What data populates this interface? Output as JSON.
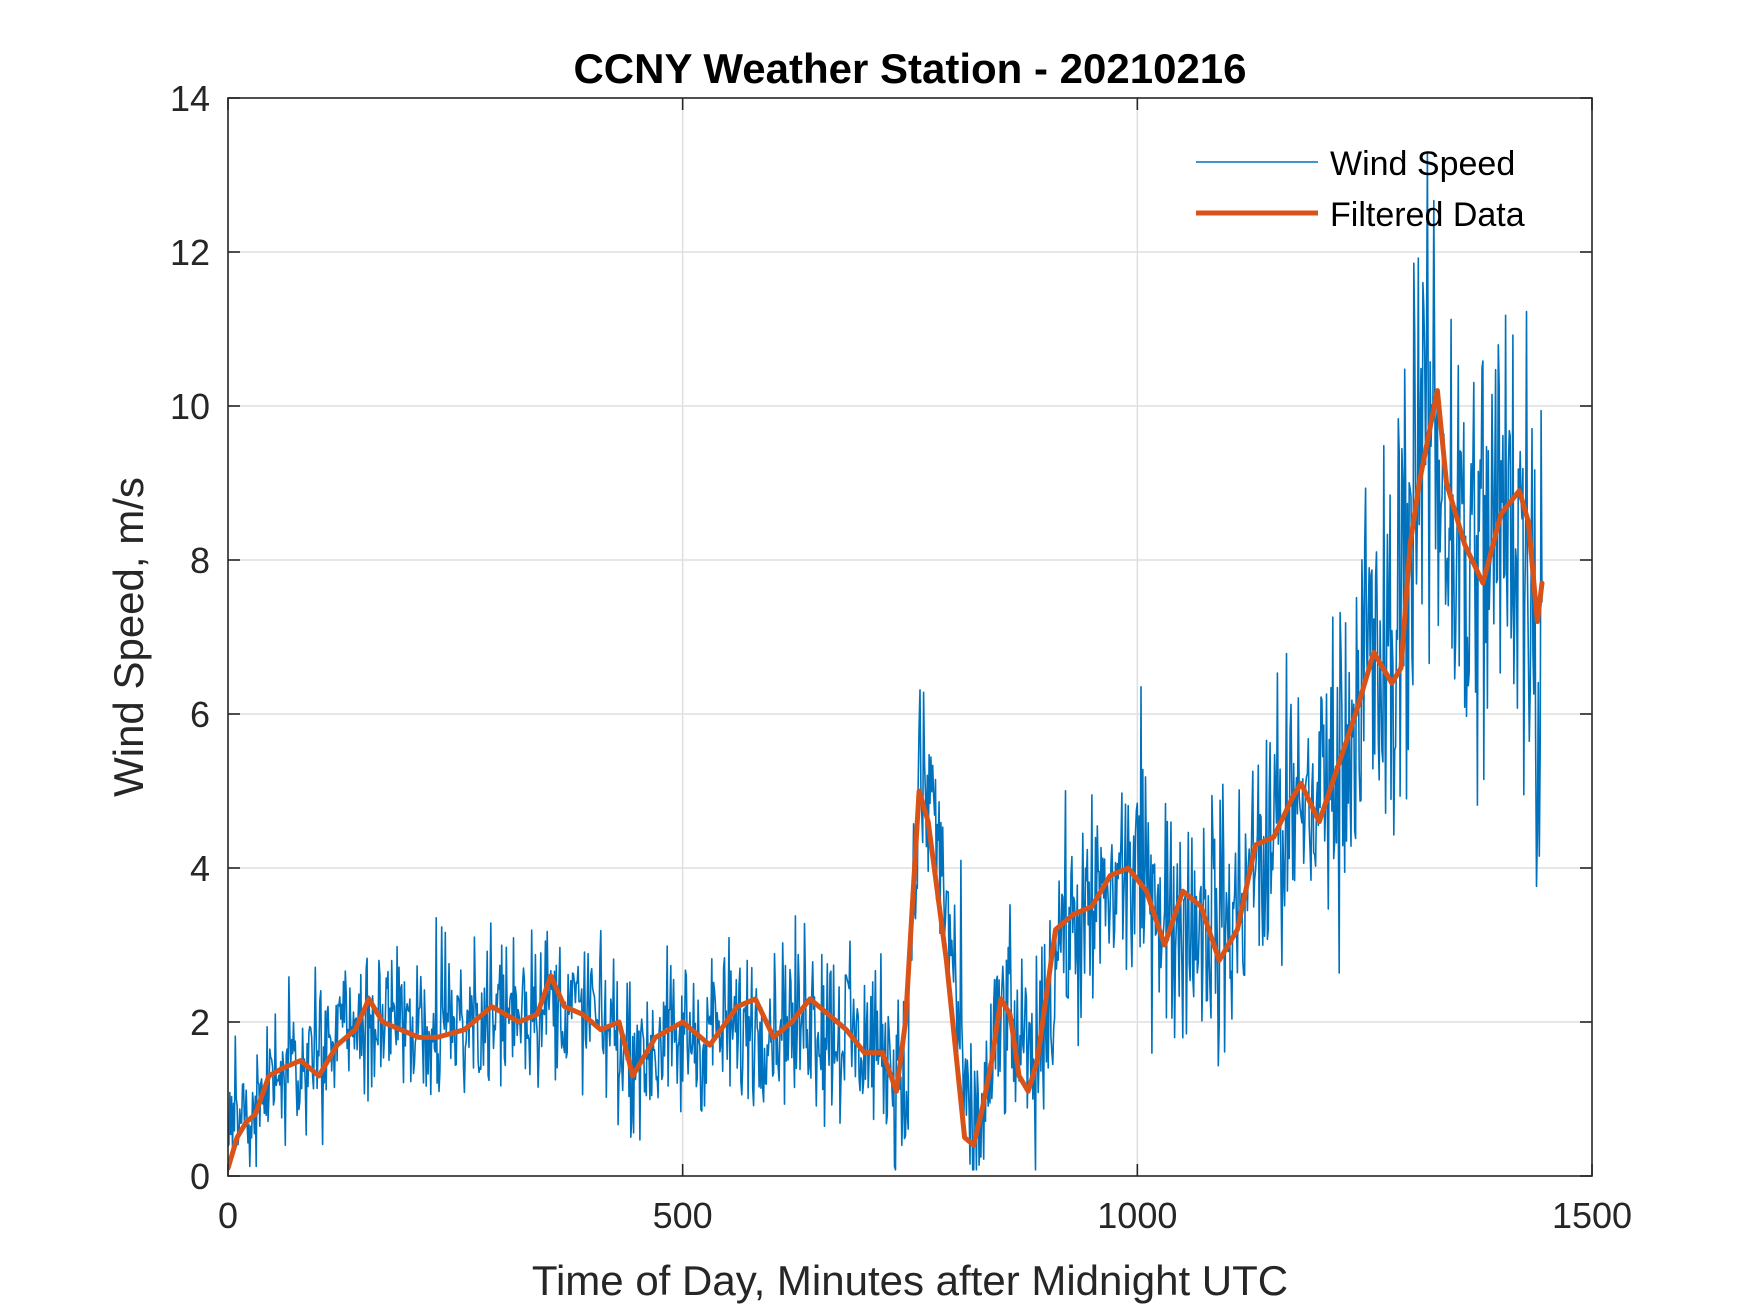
{
  "chart_data": {
    "type": "line",
    "title": "CCNY Weather Station - 20210216",
    "xlabel": "Time of Day, Minutes after Midnight UTC",
    "ylabel": "Wind Speed, m/s",
    "xlim": [
      0,
      1500
    ],
    "ylim": [
      0,
      14
    ],
    "xticks": [
      0,
      500,
      1000,
      1500
    ],
    "yticks": [
      0,
      2,
      4,
      6,
      8,
      10,
      12,
      14
    ],
    "grid": true,
    "legend_position": "top-right",
    "series": [
      {
        "name": "Wind Speed",
        "color": "#0072BD",
        "style": "thin-noisy",
        "trend_points": [
          [
            0,
            0.8
          ],
          [
            30,
            0.9
          ],
          [
            60,
            1.3
          ],
          [
            100,
            1.5
          ],
          [
            140,
            2.0
          ],
          [
            200,
            2.0
          ],
          [
            300,
            2.1
          ],
          [
            350,
            2.3
          ],
          [
            400,
            2.1
          ],
          [
            450,
            1.6
          ],
          [
            500,
            1.8
          ],
          [
            550,
            1.9
          ],
          [
            600,
            2.0
          ],
          [
            650,
            2.0
          ],
          [
            700,
            1.7
          ],
          [
            730,
            1.5
          ],
          [
            745,
            1.0
          ],
          [
            760,
            5.2
          ],
          [
            775,
            4.8
          ],
          [
            800,
            2.5
          ],
          [
            815,
            0.4
          ],
          [
            830,
            0.8
          ],
          [
            850,
            2.0
          ],
          [
            870,
            1.8
          ],
          [
            885,
            1.2
          ],
          [
            920,
            3.2
          ],
          [
            960,
            3.6
          ],
          [
            1000,
            3.9
          ],
          [
            1040,
            3.1
          ],
          [
            1070,
            3.6
          ],
          [
            1100,
            3.0
          ],
          [
            1120,
            3.8
          ],
          [
            1160,
            4.5
          ],
          [
            1200,
            5.0
          ],
          [
            1230,
            5.5
          ],
          [
            1260,
            6.8
          ],
          [
            1280,
            6.5
          ],
          [
            1300,
            8.5
          ],
          [
            1320,
            10.0
          ],
          [
            1340,
            8.8
          ],
          [
            1370,
            7.8
          ],
          [
            1400,
            8.6
          ],
          [
            1420,
            8.5
          ],
          [
            1440,
            7.2
          ]
        ],
        "noise_amplitude": [
          [
            0,
            0.5
          ],
          [
            700,
            0.7
          ],
          [
            900,
            0.8
          ],
          [
            1100,
            1.0
          ],
          [
            1250,
            1.4
          ],
          [
            1300,
            2.0
          ],
          [
            1445,
            2.2
          ]
        ]
      },
      {
        "name": "Filtered Data",
        "color": "#D95319",
        "style": "thick",
        "x": [
          0,
          10,
          20,
          30,
          45,
          60,
          80,
          100,
          120,
          140,
          155,
          170,
          190,
          210,
          230,
          260,
          290,
          320,
          340,
          355,
          370,
          390,
          410,
          430,
          445,
          470,
          500,
          530,
          560,
          580,
          600,
          620,
          640,
          660,
          680,
          700,
          720,
          735,
          745,
          760,
          770,
          790,
          810,
          820,
          830,
          840,
          850,
          860,
          870,
          880,
          890,
          910,
          930,
          950,
          970,
          990,
          1010,
          1030,
          1050,
          1070,
          1090,
          1110,
          1130,
          1150,
          1170,
          1180,
          1200,
          1220,
          1240,
          1260,
          1280,
          1290,
          1300,
          1310,
          1320,
          1330,
          1340,
          1360,
          1380,
          1400,
          1420,
          1430,
          1440,
          1445
        ],
        "y": [
          0.1,
          0.5,
          0.7,
          0.8,
          1.3,
          1.4,
          1.5,
          1.3,
          1.7,
          1.9,
          2.3,
          2.0,
          1.9,
          1.8,
          1.8,
          1.9,
          2.2,
          2.0,
          2.1,
          2.6,
          2.2,
          2.1,
          1.9,
          2.0,
          1.3,
          1.8,
          2.0,
          1.7,
          2.2,
          2.3,
          1.8,
          2.0,
          2.3,
          2.1,
          1.9,
          1.6,
          1.6,
          1.1,
          2.0,
          5.0,
          4.6,
          2.8,
          0.5,
          0.4,
          0.9,
          1.5,
          2.3,
          2.1,
          1.3,
          1.1,
          1.5,
          3.2,
          3.4,
          3.5,
          3.9,
          4.0,
          3.7,
          3.0,
          3.7,
          3.5,
          2.8,
          3.2,
          4.3,
          4.4,
          4.9,
          5.1,
          4.6,
          5.3,
          6.0,
          6.8,
          6.4,
          6.6,
          8.2,
          9.0,
          9.6,
          10.2,
          9.0,
          8.2,
          7.7,
          8.6,
          8.9,
          8.5,
          7.2,
          7.7
        ]
      }
    ]
  }
}
